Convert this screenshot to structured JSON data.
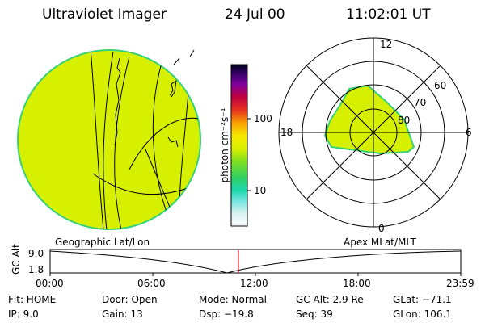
{
  "header": {
    "title": "Ultraviolet Imager",
    "date": "24 Jul 00",
    "time": "11:02:01 UT"
  },
  "colorbar": {
    "label": "photon cm⁻²s⁻¹",
    "ticks": [
      "100",
      "10"
    ]
  },
  "polar": {
    "mlt_labels": [
      "12",
      "18",
      "6",
      "0"
    ],
    "lat_labels": [
      "60",
      "70",
      "80"
    ]
  },
  "panel_labels": {
    "left": "Geographic Lat/Lon",
    "right": "Apex MLat/MLT"
  },
  "altitude_plot": {
    "ylabel": "GC Alt",
    "yticks": [
      "9.0",
      "1.8"
    ],
    "xticks": [
      "00:00",
      "06:00",
      "12:00",
      "18:00",
      "23:59"
    ],
    "min_at": "10:05",
    "marker_at": "11:02"
  },
  "info": {
    "flt": "Flt: HOME",
    "ip": "IP: 9.0",
    "door": "Door: Open",
    "gain": "Gain: 13",
    "mode": "Mode: Normal",
    "dsp": "Dsp: −19.8",
    "gcalt": "GC Alt: 2.9 Re",
    "seq": "Seq: 39",
    "glat": "GLat: −71.1",
    "glon": "GLon: 106.1"
  },
  "colors": {
    "fill": "#d7f000",
    "fill_edge": "#36d27a",
    "marker": "#e00000"
  }
}
